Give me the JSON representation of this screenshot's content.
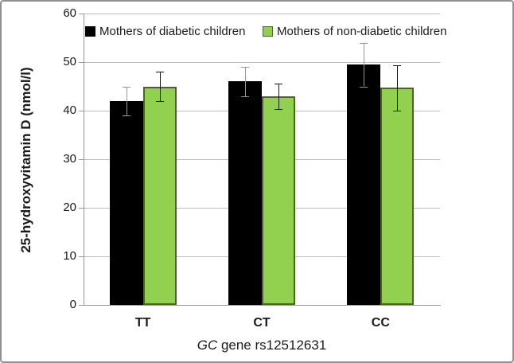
{
  "frame": {
    "background": "#ffffff",
    "border_color": "#8f8f8f"
  },
  "chart_data": {
    "type": "bar",
    "title": "",
    "categories": [
      "TT",
      "CT",
      "CC"
    ],
    "series": [
      {
        "key": "diabetic",
        "name": "Mothers of diabetic children",
        "fill_color": "#000000",
        "border_color": "#000000",
        "error_color": "#969696",
        "values": [
          42,
          46,
          49.5
        ],
        "errors": [
          3,
          3,
          4.5
        ]
      },
      {
        "key": "non-diabetic",
        "name": "Mothers of non-diabetic children",
        "fill_color": "#92D050",
        "border_color": "#4F6228",
        "error_color": "#1a1a1a",
        "values": [
          45,
          43,
          44.7
        ],
        "errors": [
          3,
          2.6,
          4.7
        ]
      }
    ],
    "xlabel_italic": "GC",
    "xlabel_rest": " gene rs12512631",
    "ylabel": "25-hydroxyvitamin D (nmol/l)",
    "ylim": [
      0,
      60
    ],
    "yticks": [
      0,
      10,
      20,
      30,
      40,
      50,
      60
    ],
    "grid": true,
    "legend_position": "top-inside",
    "colors": {
      "gridline": "#bdbdbd",
      "axis": "#969696",
      "text": "#1a1a1a"
    }
  }
}
